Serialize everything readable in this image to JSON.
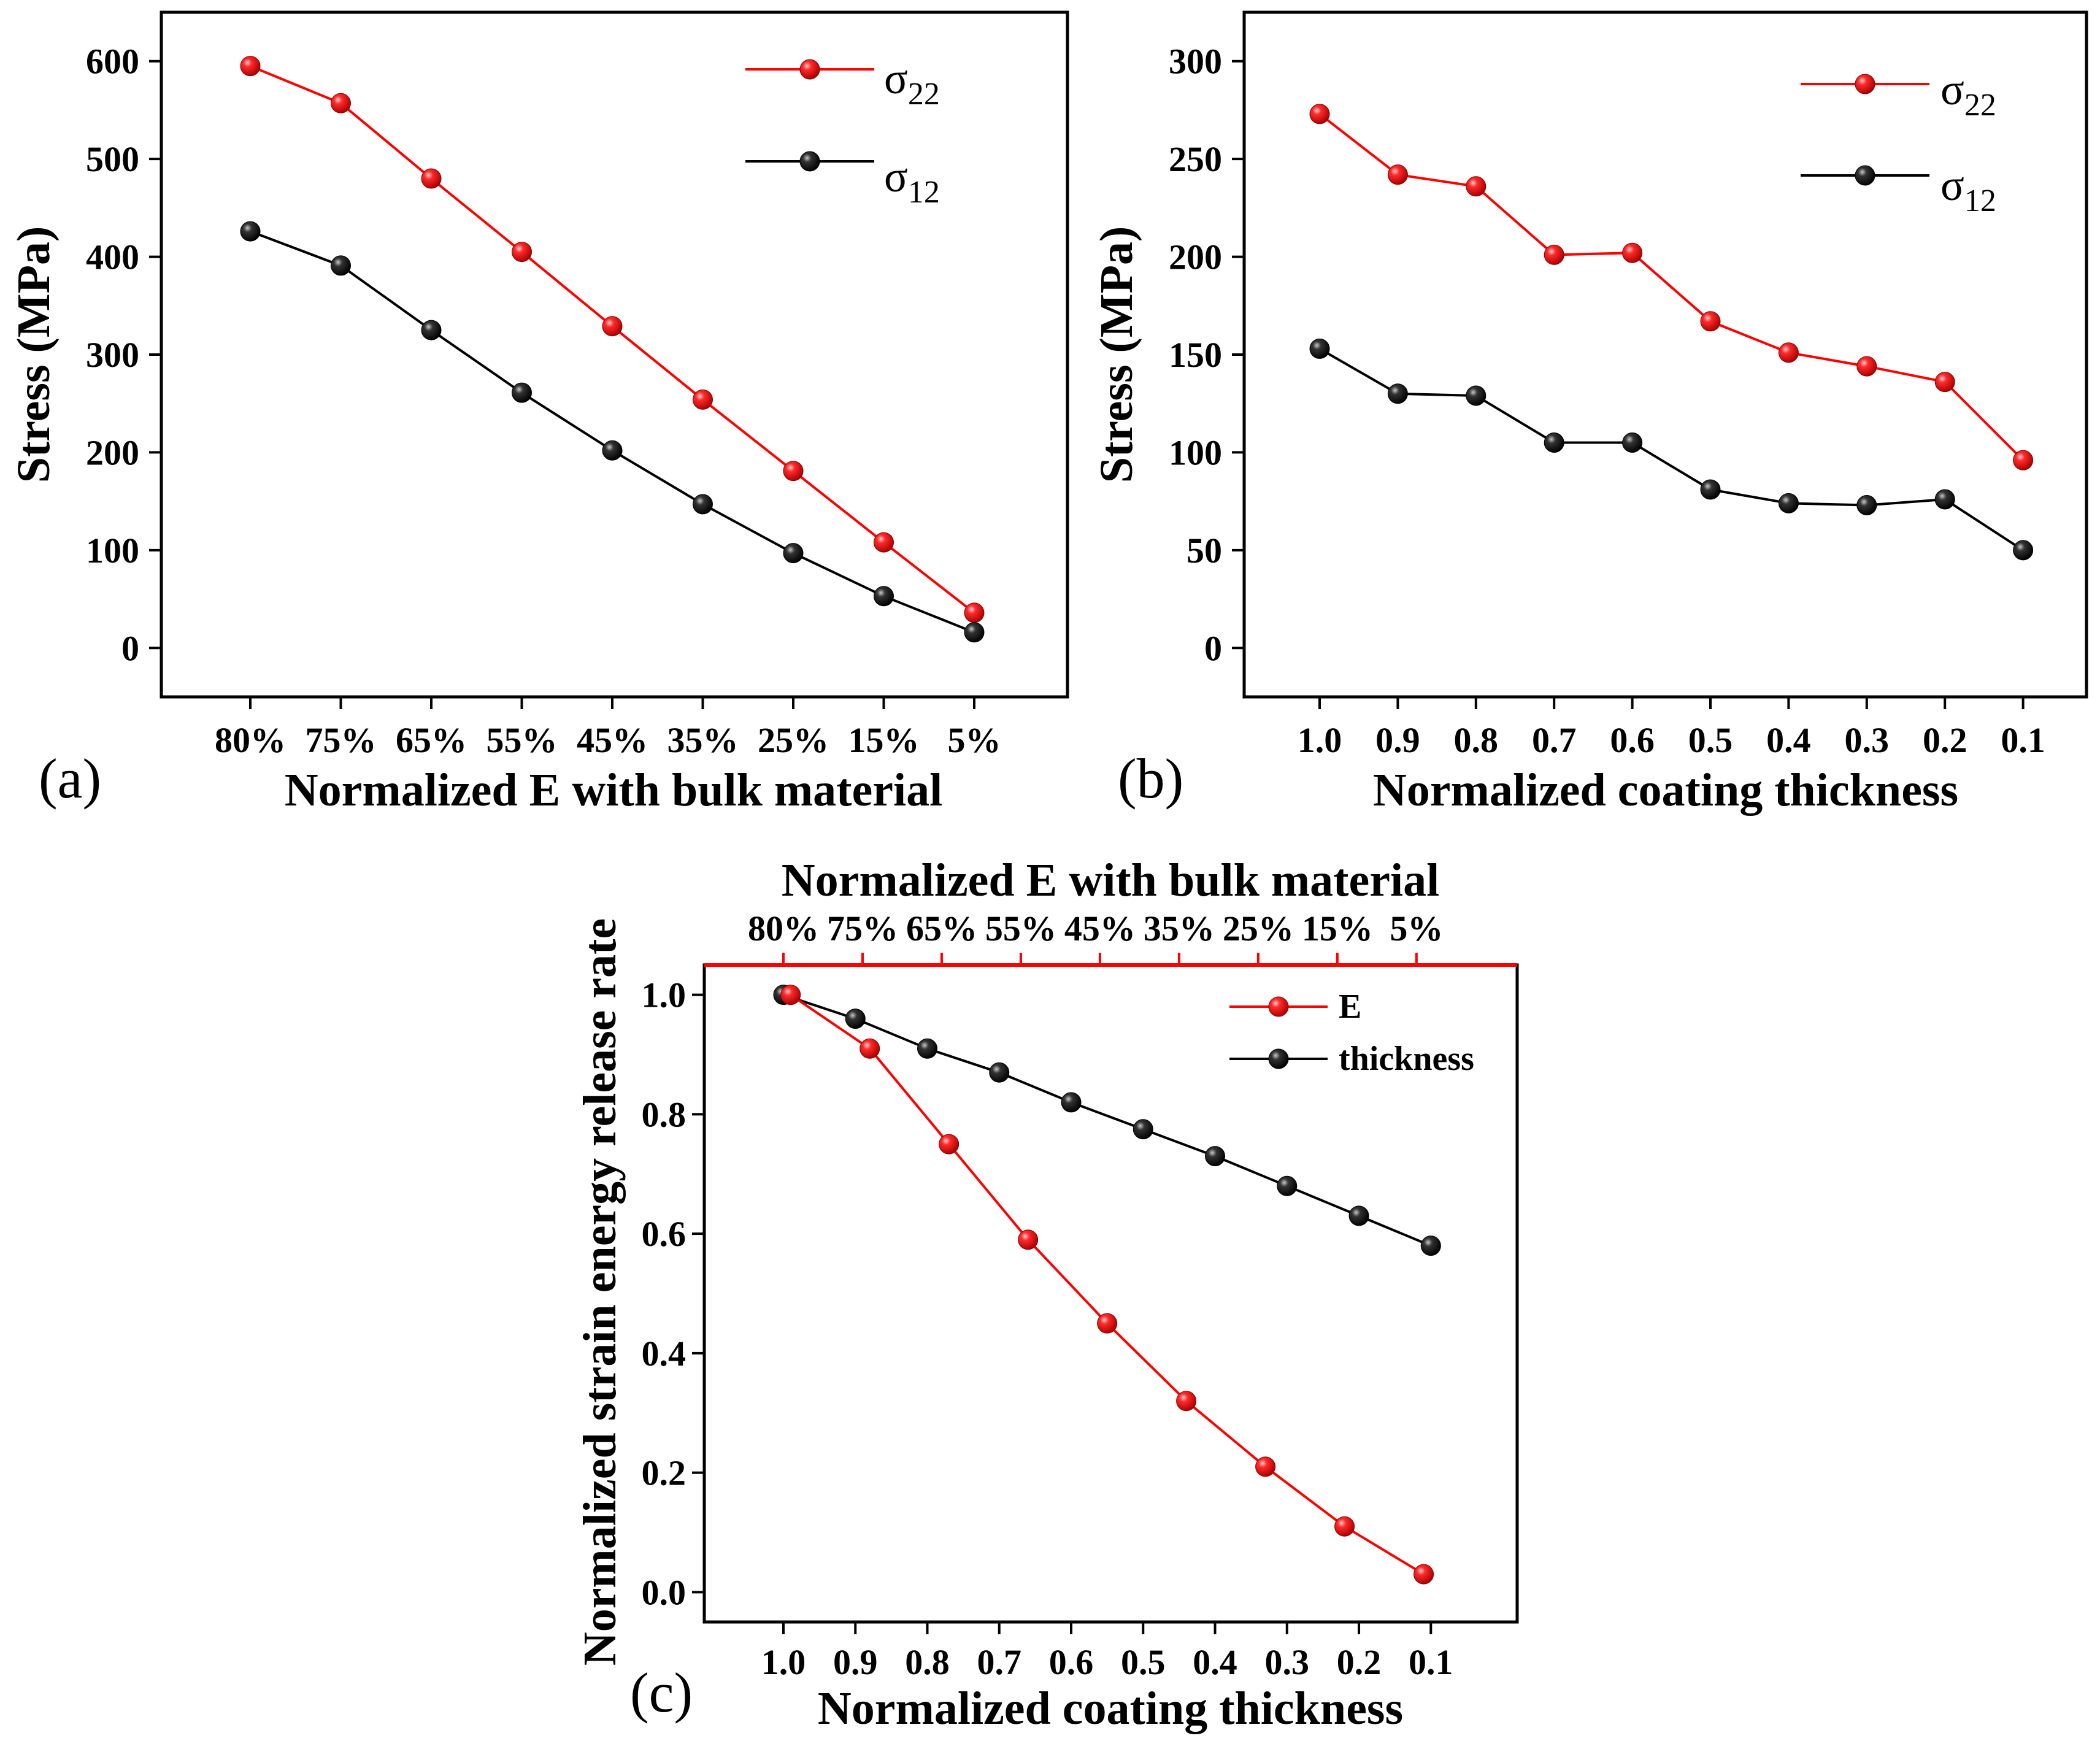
{
  "colors": {
    "red": "#ff0000",
    "black": "#000000"
  },
  "chart_data": [
    {
      "id": "a",
      "type": "line",
      "panel_label": "(a)",
      "title": "",
      "xlabel": "Normalized E with bulk material",
      "ylabel": "Stress (MPa)",
      "categories": [
        "80%",
        "75%",
        "65%",
        "55%",
        "45%",
        "35%",
        "25%",
        "15%",
        "5%"
      ],
      "ylim": [
        -50,
        650
      ],
      "yticks": [
        0,
        100,
        200,
        300,
        400,
        500,
        600
      ],
      "legend_position": "top-right",
      "series": [
        {
          "name": "σ",
          "sub": "22",
          "color": "#ff0000",
          "values": [
            595,
            557,
            480,
            405,
            329,
            254,
            181,
            108,
            36
          ]
        },
        {
          "name": "σ",
          "sub": "12",
          "color": "#000000",
          "values": [
            426,
            391,
            325,
            261,
            202,
            147,
            97,
            53,
            16
          ]
        }
      ]
    },
    {
      "id": "b",
      "type": "line",
      "panel_label": "(b)",
      "title": "",
      "xlabel": "Normalized coating thickness",
      "ylabel": "Stress (MPa)",
      "categories": [
        "1.0",
        "0.9",
        "0.8",
        "0.7",
        "0.6",
        "0.5",
        "0.4",
        "0.3",
        "0.2",
        "0.1"
      ],
      "ylim": [
        -25,
        325
      ],
      "yticks": [
        0,
        50,
        100,
        150,
        200,
        250,
        300
      ],
      "legend_position": "top-right",
      "series": [
        {
          "name": "σ",
          "sub": "22",
          "color": "#ff0000",
          "values": [
            273,
            242,
            236,
            201,
            202,
            167,
            151,
            144,
            136,
            96
          ]
        },
        {
          "name": "σ",
          "sub": "12",
          "color": "#000000",
          "values": [
            153,
            130,
            129,
            105,
            105,
            81,
            74,
            73,
            76,
            50
          ]
        }
      ]
    },
    {
      "id": "c",
      "type": "line",
      "panel_label": "(c)",
      "title": "",
      "xlabel": "Normalized coating thickness",
      "xlabel_top": "Normalized E with bulk material",
      "ylabel": "Normalized strain energy release rate",
      "x_bottom_ticks": [
        "1.0",
        "0.9",
        "0.8",
        "0.7",
        "0.6",
        "0.5",
        "0.4",
        "0.3",
        "0.2",
        "0.1"
      ],
      "x_top_ticks": [
        "80%",
        "75%",
        "65%",
        "55%",
        "45%",
        "35%",
        "25%",
        "15%",
        "5%"
      ],
      "xlim": [
        1.11,
        -0.02
      ],
      "ylim": [
        -0.05,
        1.05
      ],
      "yticks": [
        0.0,
        0.2,
        0.4,
        0.6,
        0.8,
        1.0
      ],
      "legend_position": "top-right",
      "series": [
        {
          "name": "E",
          "color": "#ff0000",
          "x": [
            0.99,
            0.88,
            0.77,
            0.66,
            0.55,
            0.44,
            0.33,
            0.22,
            0.11
          ],
          "y": [
            1.0,
            0.91,
            0.75,
            0.59,
            0.45,
            0.32,
            0.21,
            0.11,
            0.03
          ]
        },
        {
          "name": "thickness",
          "color": "#000000",
          "x": [
            1.0,
            0.9,
            0.8,
            0.7,
            0.6,
            0.5,
            0.4,
            0.3,
            0.2,
            0.1
          ],
          "y": [
            1.0,
            0.96,
            0.91,
            0.87,
            0.82,
            0.775,
            0.73,
            0.68,
            0.63,
            0.58
          ]
        }
      ]
    }
  ]
}
